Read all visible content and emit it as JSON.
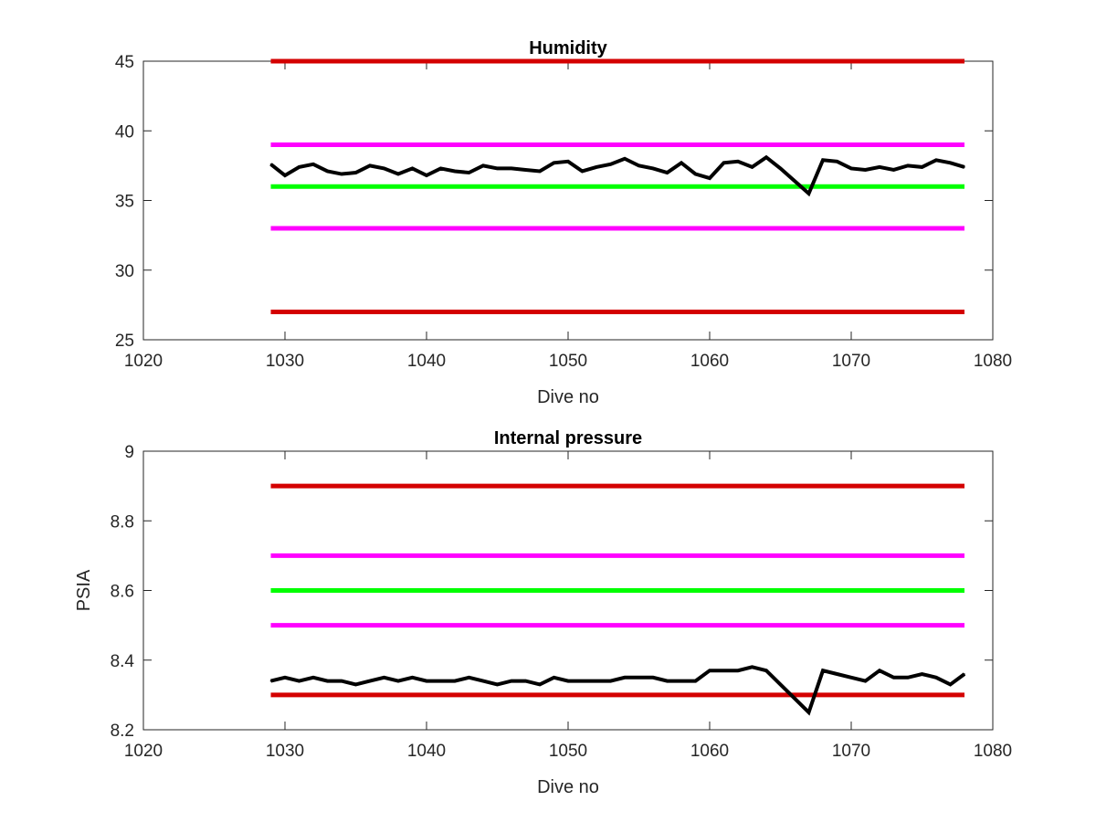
{
  "colors": {
    "red": "#d40000",
    "magenta": "#ff00ff",
    "green": "#00ff00",
    "black": "#000000"
  },
  "chart_data": [
    {
      "id": "humidity",
      "type": "line",
      "title": "Humidity",
      "xlabel": "Dive no",
      "ylabel": "",
      "xlim": [
        1020,
        1080
      ],
      "ylim": [
        25,
        45
      ],
      "xticks": [
        1020,
        1030,
        1040,
        1050,
        1060,
        1070,
        1080
      ],
      "yticks": [
        25,
        30,
        35,
        40,
        45
      ],
      "grid": false,
      "limits": [
        {
          "y": 45,
          "x": [
            1029,
            1078
          ],
          "color": "red"
        },
        {
          "y": 39,
          "x": [
            1029,
            1078
          ],
          "color": "magenta"
        },
        {
          "y": 36,
          "x": [
            1029,
            1078
          ],
          "color": "green"
        },
        {
          "y": 33,
          "x": [
            1029,
            1078
          ],
          "color": "magenta"
        },
        {
          "y": 27,
          "x": [
            1029,
            1078
          ],
          "color": "red"
        }
      ],
      "series": [
        {
          "color": "black",
          "x": [
            1029,
            1030,
            1031,
            1032,
            1033,
            1034,
            1035,
            1036,
            1037,
            1038,
            1039,
            1040,
            1041,
            1042,
            1043,
            1044,
            1045,
            1046,
            1047,
            1048,
            1049,
            1050,
            1051,
            1052,
            1053,
            1054,
            1055,
            1056,
            1057,
            1058,
            1059,
            1060,
            1061,
            1062,
            1063,
            1064,
            1065,
            1066,
            1067,
            1068,
            1069,
            1070,
            1071,
            1072,
            1073,
            1074,
            1075,
            1076,
            1077,
            1078
          ],
          "values": [
            37.6,
            36.8,
            37.4,
            37.6,
            37.1,
            36.9,
            37.0,
            37.5,
            37.3,
            36.9,
            37.3,
            36.8,
            37.3,
            37.1,
            37.0,
            37.5,
            37.3,
            37.3,
            37.2,
            37.1,
            37.7,
            37.8,
            37.1,
            37.4,
            37.6,
            38.0,
            37.5,
            37.3,
            37.0,
            37.7,
            36.9,
            36.6,
            37.7,
            37.8,
            37.4,
            38.1,
            37.3,
            36.4,
            35.5,
            37.9,
            37.8,
            37.3,
            37.2,
            37.4,
            37.2,
            37.5,
            37.4,
            37.9,
            37.7,
            37.4
          ]
        }
      ]
    },
    {
      "id": "pressure",
      "type": "line",
      "title": "Internal pressure",
      "xlabel": "Dive no",
      "ylabel": "PSIA",
      "xlim": [
        1020,
        1080
      ],
      "ylim": [
        8.2,
        9.0
      ],
      "xticks": [
        1020,
        1030,
        1040,
        1050,
        1060,
        1070,
        1080
      ],
      "yticks": [
        8.2,
        8.4,
        8.6,
        8.8,
        9.0
      ],
      "ytick_labels": [
        "8.2",
        "8.4",
        "8.6",
        "8.8",
        "9"
      ],
      "grid": false,
      "limits": [
        {
          "y": 8.9,
          "x": [
            1029,
            1078
          ],
          "color": "red"
        },
        {
          "y": 8.7,
          "x": [
            1029,
            1078
          ],
          "color": "magenta"
        },
        {
          "y": 8.6,
          "x": [
            1029,
            1078
          ],
          "color": "green"
        },
        {
          "y": 8.5,
          "x": [
            1029,
            1078
          ],
          "color": "magenta"
        },
        {
          "y": 8.3,
          "x": [
            1029,
            1078
          ],
          "color": "red"
        }
      ],
      "series": [
        {
          "color": "black",
          "x": [
            1029,
            1030,
            1031,
            1032,
            1033,
            1034,
            1035,
            1036,
            1037,
            1038,
            1039,
            1040,
            1041,
            1042,
            1043,
            1044,
            1045,
            1046,
            1047,
            1048,
            1049,
            1050,
            1051,
            1052,
            1053,
            1054,
            1055,
            1056,
            1057,
            1058,
            1059,
            1060,
            1061,
            1062,
            1063,
            1064,
            1065,
            1066,
            1067,
            1068,
            1069,
            1070,
            1071,
            1072,
            1073,
            1074,
            1075,
            1076,
            1077,
            1078
          ],
          "values": [
            8.34,
            8.35,
            8.34,
            8.35,
            8.34,
            8.34,
            8.33,
            8.34,
            8.35,
            8.34,
            8.35,
            8.34,
            8.34,
            8.34,
            8.35,
            8.34,
            8.33,
            8.34,
            8.34,
            8.33,
            8.35,
            8.34,
            8.34,
            8.34,
            8.34,
            8.35,
            8.35,
            8.35,
            8.34,
            8.34,
            8.34,
            8.37,
            8.37,
            8.37,
            8.38,
            8.37,
            8.33,
            8.29,
            8.25,
            8.37,
            8.36,
            8.35,
            8.34,
            8.37,
            8.35,
            8.35,
            8.36,
            8.35,
            8.33,
            8.36
          ]
        }
      ]
    }
  ]
}
